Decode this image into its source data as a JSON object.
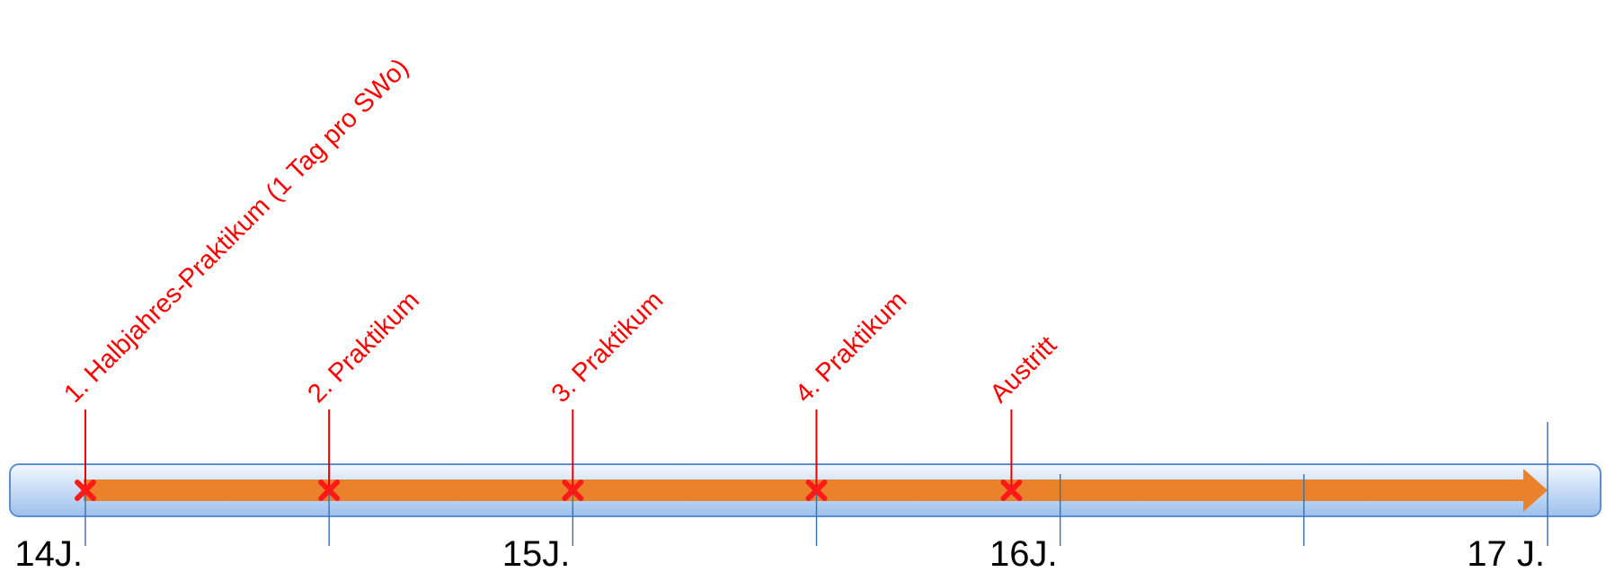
{
  "timeline": {
    "colors": {
      "bar_fill_top": "#f3f8ff",
      "bar_fill_bottom": "#9cc0ec",
      "bar_stroke": "#5b8fd1",
      "arrow": "#e9822b",
      "tick_line": "#3a6fb0",
      "event_line": "#e60000",
      "event_text": "#ff0000",
      "marker": "#ff1a1a"
    },
    "years": [
      {
        "label": "14J.",
        "value": 14
      },
      {
        "label": "15J.",
        "value": 15
      },
      {
        "label": "16J.",
        "value": 16
      },
      {
        "label": "17 J.",
        "value": 17
      }
    ],
    "ticks": [
      14,
      14.5,
      15,
      15.5,
      16,
      16.5,
      17
    ],
    "events": [
      {
        "label": "1. Halbjahres-Praktikum (1 Tag pro SWo)",
        "value": 14
      },
      {
        "label": "2. Praktikum",
        "value": 14.5
      },
      {
        "label": "3. Praktikum",
        "value": 15
      },
      {
        "label": "4. Praktikum",
        "value": 15.5
      },
      {
        "label": "Austritt",
        "value": 15.9
      }
    ]
  }
}
